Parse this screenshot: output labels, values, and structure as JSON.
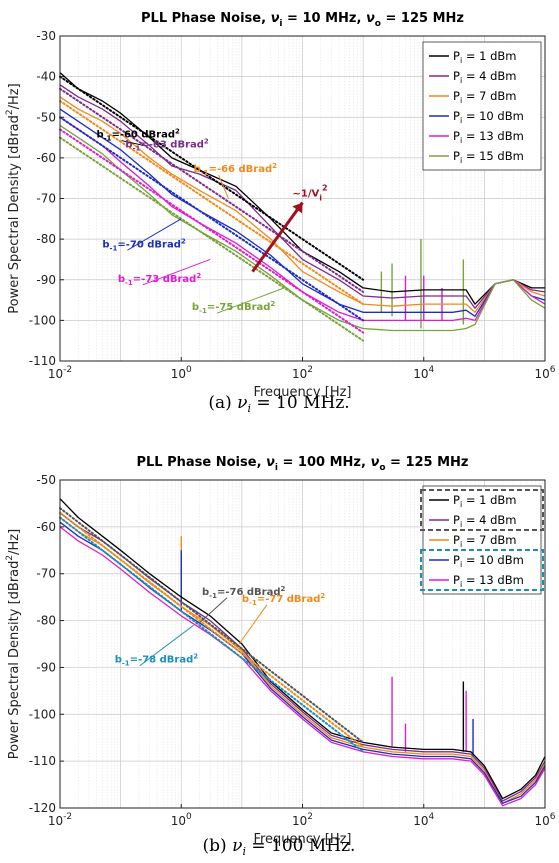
{
  "chart_data": [
    {
      "type": "line",
      "title_prefix": "PLL Phase Noise, ",
      "title_v1": "ν",
      "title_v1_sub": "i",
      "title_mid": " = 10 MHz, ",
      "title_v2": "ν",
      "title_v2_sub": "o",
      "title_end": " = 125 MHz",
      "xlabel": "Frequency [Hz]",
      "ylabel_pre": "Power Spectral Density [dBrad",
      "ylabel_sup": "2",
      "ylabel_post": "/Hz]",
      "x_scale": "log",
      "xlim": [
        0.01,
        1000000
      ],
      "ylim": [
        -110,
        -30
      ],
      "yticks": [
        -110,
        -100,
        -90,
        -80,
        -70,
        -60,
        -50,
        -40,
        -30
      ],
      "xtick_labels": [
        "10",
        "10",
        "10",
        "10",
        "10"
      ],
      "xtick_exponents": [
        "-2",
        "0",
        "2",
        "4",
        "6"
      ],
      "grid": true,
      "legend_position": "top-right",
      "series": [
        {
          "name": "P",
          "sub": "i",
          "rest": " = 1 dBm",
          "color": "#000000",
          "x": [
            0.01,
            0.02,
            0.05,
            0.1,
            0.3,
            0.7,
            2,
            8,
            30,
            100,
            400,
            1000,
            3000,
            10000,
            30000,
            50000,
            70000,
            150000,
            300000,
            600000,
            1000000
          ],
          "y": [
            -39,
            -43,
            -46,
            -49,
            -55,
            -60,
            -63,
            -67,
            -75,
            -83,
            -88,
            -92,
            -93,
            -92.5,
            -92.5,
            -92.5,
            -96,
            -91,
            -90,
            -92,
            -92
          ]
        },
        {
          "name": "P",
          "sub": "i",
          "rest": " = 4 dBm",
          "color": "#7b2d8e",
          "x": [
            0.01,
            0.02,
            0.05,
            0.1,
            0.3,
            0.7,
            2,
            8,
            30,
            100,
            400,
            1000,
            3000,
            10000,
            30000,
            50000,
            70000,
            150000,
            300000,
            600000,
            1000000
          ],
          "y": [
            -42,
            -45,
            -48,
            -51,
            -57,
            -62,
            -64,
            -68,
            -77,
            -85,
            -90,
            -94,
            -94.5,
            -94,
            -94,
            -94,
            -97,
            -91,
            -90,
            -92.5,
            -93
          ]
        },
        {
          "name": "P",
          "sub": "i",
          "rest": " = 7 dBm",
          "color": "#ef8a1a",
          "x": [
            0.01,
            0.02,
            0.05,
            0.1,
            0.3,
            0.7,
            2,
            8,
            30,
            100,
            400,
            1000,
            3000,
            10000,
            30000,
            50000,
            70000,
            150000,
            300000,
            600000,
            1000000
          ],
          "y": [
            -45,
            -48,
            -51,
            -54,
            -60,
            -64,
            -68,
            -73,
            -80,
            -88,
            -93,
            -96,
            -96.5,
            -96,
            -96,
            -96,
            -98,
            -91,
            -90,
            -93,
            -94
          ]
        },
        {
          "name": "P",
          "sub": "i",
          "rest": " = 10 dBm",
          "color": "#1c2dbf",
          "x": [
            0.01,
            0.02,
            0.05,
            0.1,
            0.3,
            0.7,
            2,
            8,
            30,
            100,
            400,
            1000,
            3000,
            10000,
            30000,
            50000,
            70000,
            150000,
            300000,
            600000,
            1000000
          ],
          "y": [
            -48,
            -51,
            -55,
            -58,
            -64,
            -69,
            -73,
            -78,
            -84,
            -91,
            -96,
            -98,
            -98,
            -98,
            -98,
            -97.5,
            -99,
            -91,
            -90,
            -94,
            -95
          ]
        },
        {
          "name": "P",
          "sub": "i",
          "rest": " = 13 dBm",
          "color": "#e01bd0",
          "x": [
            0.01,
            0.02,
            0.05,
            0.1,
            0.3,
            0.7,
            2,
            8,
            30,
            100,
            400,
            1000,
            3000,
            10000,
            30000,
            50000,
            70000,
            150000,
            300000,
            600000,
            1000000
          ],
          "y": [
            -50,
            -53,
            -57,
            -61,
            -67,
            -72,
            -76,
            -81,
            -87,
            -93,
            -98,
            -100,
            -100,
            -100,
            -100,
            -99.5,
            -100,
            -91,
            -90,
            -94,
            -96
          ]
        },
        {
          "name": "P",
          "sub": "i",
          "rest": " = 15 dBm",
          "color": "#76a33a",
          "x": [
            0.01,
            0.02,
            0.05,
            0.1,
            0.3,
            0.7,
            2,
            8,
            30,
            100,
            400,
            1000,
            3000,
            10000,
            30000,
            50000,
            70000,
            150000,
            300000,
            600000,
            1000000
          ],
          "y": [
            -52,
            -55,
            -59,
            -63,
            -69,
            -74,
            -78,
            -83,
            -89,
            -95,
            -100,
            -102,
            -102.5,
            -102.5,
            -102.5,
            -102,
            -101,
            -91,
            -90,
            -95,
            -97
          ]
        }
      ],
      "fit_lines": [
        {
          "color": "#000000",
          "b": -60,
          "x": [
            0.01,
            1000
          ],
          "y": [
            -40,
            -90
          ]
        },
        {
          "color": "#7b2d8e",
          "b": -63,
          "x": [
            0.01,
            1000
          ],
          "y": [
            -43,
            -93
          ]
        },
        {
          "color": "#ef8a1a",
          "b": -66,
          "x": [
            0.01,
            1000
          ],
          "y": [
            -46,
            -96
          ]
        },
        {
          "color": "#1c2dbf",
          "b": -70,
          "x": [
            0.01,
            1000
          ],
          "y": [
            -50,
            -100
          ]
        },
        {
          "color": "#e01bd0",
          "b": -73,
          "x": [
            0.01,
            1000
          ],
          "y": [
            -53,
            -103
          ]
        },
        {
          "color": "#76a33a",
          "b": -75,
          "x": [
            0.01,
            1000
          ],
          "y": [
            -55,
            -105
          ]
        }
      ],
      "spurs": [
        {
          "x": 2000,
          "top": -88,
          "base": -98,
          "color": "#76a33a"
        },
        {
          "x": 3000,
          "top": -86,
          "base": -99,
          "color": "#76a33a"
        },
        {
          "x": 5000,
          "top": -89,
          "base": -100,
          "color": "#e01bd0"
        },
        {
          "x": 9000,
          "top": -80,
          "base": -102,
          "color": "#76a33a"
        },
        {
          "x": 10000,
          "top": -89,
          "base": -100,
          "color": "#e01bd0"
        },
        {
          "x": 20000,
          "top": -92,
          "base": -100,
          "color": "#e01bd0"
        },
        {
          "x": 45000,
          "top": -85,
          "base": -101,
          "color": "#76a33a"
        }
      ],
      "annotations": [
        {
          "text": "b",
          "sub": "-1",
          "rest": "=-60 dBrad",
          "sup": "2",
          "color": "#000000",
          "tx": 0.04,
          "ty": -55,
          "ax": 0.25,
          "ay": -57
        },
        {
          "text": "b",
          "sub": "-1",
          "rest": "=-63 dBrad",
          "sup": "2",
          "color": "#7b2d8e",
          "tx": 0.12,
          "ty": -57.5,
          "ax": null,
          "ay": null
        },
        {
          "text": "b",
          "sub": "-1",
          "rest": "=-66 dBrad",
          "sup": "2",
          "color": "#ef8a1a",
          "tx": 1.6,
          "ty": -63.5,
          "ax": 6,
          "ay": -70
        },
        {
          "text": "b",
          "sub": "-1",
          "rest": "=-70 dBrad",
          "sup": "2",
          "color": "#1c2dbf",
          "tx": 0.05,
          "ty": -82,
          "ax": 1,
          "ay": -75
        },
        {
          "text": "b",
          "sub": "-1",
          "rest": "=-73 dBrad",
          "sup": "2",
          "color": "#e01bd0",
          "tx": 0.09,
          "ty": -90.5,
          "ax": 3,
          "ay": -85
        },
        {
          "text": "b",
          "sub": "-1",
          "rest": "=-75 dBrad",
          "sup": "2",
          "color": "#76a33a",
          "tx": 1.5,
          "ty": -97.5,
          "ax": 50,
          "ay": -92
        }
      ],
      "scale_arrow": {
        "text": "~1/V",
        "sub": "i",
        "sup": "2",
        "color": "#a0101e",
        "x1": 15,
        "y1": -88,
        "x2": 100,
        "y2": -71
      }
    },
    {
      "type": "line",
      "title_prefix": "PLL Phase Noise, ",
      "title_v1": "ν",
      "title_v1_sub": "i",
      "title_mid": " = 100 MHz, ",
      "title_v2": "ν",
      "title_v2_sub": "o",
      "title_end": " = 125 MHz",
      "xlabel": "Frequency [Hz]",
      "ylabel_pre": "Power Spectral Density [dBrad",
      "ylabel_sup": "2",
      "ylabel_post": "/Hz]",
      "x_scale": "log",
      "xlim": [
        0.01,
        1000000
      ],
      "ylim": [
        -120,
        -50
      ],
      "yticks": [
        -120,
        -110,
        -100,
        -90,
        -80,
        -70,
        -60,
        -50
      ],
      "xtick_labels": [
        "10",
        "10",
        "10",
        "10",
        "10"
      ],
      "xtick_exponents": [
        "-2",
        "0",
        "2",
        "4",
        "6"
      ],
      "grid": true,
      "legend_position": "top-right",
      "series": [
        {
          "name": "P",
          "sub": "i",
          "rest": " =  1 dBm",
          "color": "#000000",
          "x": [
            0.01,
            0.02,
            0.05,
            0.1,
            0.3,
            1,
            3,
            10,
            30,
            100,
            300,
            1000,
            3000,
            10000,
            30000,
            60000,
            100000,
            200000,
            400000,
            700000,
            1000000
          ],
          "y": [
            -54,
            -58,
            -62,
            -65,
            -70,
            -75,
            -79,
            -85,
            -93,
            -99,
            -104,
            -106,
            -107,
            -107.5,
            -107.5,
            -108,
            -111,
            -118,
            -116,
            -113,
            -109
          ]
        },
        {
          "name": "P",
          "sub": "i",
          "rest": " =  4  dBm",
          "color": "#7b2d8e",
          "x": [
            0.01,
            0.02,
            0.05,
            0.1,
            0.3,
            1,
            3,
            10,
            30,
            100,
            300,
            1000,
            3000,
            10000,
            30000,
            60000,
            100000,
            200000,
            400000,
            700000,
            1000000
          ],
          "y": [
            -57,
            -60,
            -63,
            -66,
            -71,
            -76,
            -80,
            -86,
            -93.5,
            -99.5,
            -104.5,
            -106.5,
            -107.5,
            -108,
            -108,
            -108.5,
            -111.5,
            -118.5,
            -116.5,
            -113.5,
            -110
          ]
        },
        {
          "name": "P",
          "sub": "i",
          "rest": " =  7  dBm",
          "color": "#ef8a1a",
          "x": [
            0.01,
            0.02,
            0.05,
            0.1,
            0.3,
            1,
            3,
            10,
            30,
            100,
            300,
            1000,
            3000,
            10000,
            30000,
            60000,
            100000,
            200000,
            400000,
            700000,
            1000000
          ],
          "y": [
            -58,
            -61,
            -64,
            -67,
            -72,
            -77,
            -81,
            -86.5,
            -94,
            -100,
            -105,
            -107,
            -108,
            -108.5,
            -108.5,
            -109,
            -112,
            -119,
            -117,
            -114,
            -110.5
          ]
        },
        {
          "name": "P",
          "sub": "i",
          "rest": " = 10 dBm",
          "color": "#1c2dbf",
          "x": [
            0.01,
            0.02,
            0.05,
            0.1,
            0.3,
            1,
            3,
            10,
            30,
            100,
            300,
            1000,
            3000,
            10000,
            30000,
            60000,
            100000,
            200000,
            400000,
            700000,
            1000000
          ],
          "y": [
            -59,
            -62,
            -65,
            -68,
            -73,
            -78,
            -82,
            -87,
            -94.5,
            -100.5,
            -105.5,
            -107.5,
            -108.5,
            -109,
            -109,
            -109.5,
            -112.5,
            -119,
            -117.5,
            -114.5,
            -111
          ]
        },
        {
          "name": "P",
          "sub": "i",
          "rest": " = 13 dBm",
          "color": "#e01bd0",
          "x": [
            0.01,
            0.02,
            0.05,
            0.1,
            0.3,
            1,
            3,
            10,
            30,
            100,
            300,
            1000,
            3000,
            10000,
            30000,
            60000,
            100000,
            200000,
            400000,
            700000,
            1000000
          ],
          "y": [
            -60,
            -63,
            -66,
            -69,
            -74,
            -79,
            -83,
            -88,
            -95,
            -101,
            -106,
            -108,
            -109,
            -109.5,
            -109.5,
            -110,
            -113,
            -119.5,
            -118,
            -115,
            -111.5
          ]
        }
      ],
      "fit_lines": [
        {
          "color": "#555555",
          "b": -76,
          "x": [
            0.01,
            1000
          ],
          "y": [
            -56,
            -106
          ]
        },
        {
          "color": "#ef8a1a",
          "b": -77,
          "x": [
            0.01,
            1000
          ],
          "y": [
            -57,
            -107
          ]
        },
        {
          "color": "#1a8fb8",
          "b": -78,
          "x": [
            0.01,
            1000
          ],
          "y": [
            -58,
            -108
          ]
        }
      ],
      "spurs": [
        {
          "x": 1,
          "top": -62,
          "base": -78,
          "color": "#ef8a1a"
        },
        {
          "x": 1,
          "top": -65,
          "base": -78,
          "color": "#1c2dbf"
        },
        {
          "x": 3000,
          "top": -92,
          "base": -107,
          "color": "#e01bd0"
        },
        {
          "x": 5000,
          "top": -102,
          "base": -108,
          "color": "#e01bd0"
        },
        {
          "x": 45000,
          "top": -93,
          "base": -108,
          "color": "#000000"
        },
        {
          "x": 50000,
          "top": -95,
          "base": -108,
          "color": "#e01bd0"
        },
        {
          "x": 65000,
          "top": -101,
          "base": -109,
          "color": "#1c2dbf"
        }
      ],
      "annotations": [
        {
          "text": "b",
          "sub": "-1",
          "rest": "=-76 dBrad",
          "sup": "2",
          "color": "#555555",
          "tx": 2.2,
          "ty": -74.5,
          "ax": 2,
          "ay": -80.5
        },
        {
          "text": "b",
          "sub": "-1",
          "rest": "=-77 dBrad",
          "sup": "2",
          "color": "#ef8a1a",
          "tx": 10,
          "ty": -76,
          "ax": 9,
          "ay": -85
        },
        {
          "text": "b",
          "sub": "-1",
          "rest": "=-78 dBrad",
          "sup": "2",
          "color": "#1a8fb8",
          "tx": 0.08,
          "ty": -89,
          "ax": 1.6,
          "ay": -81
        }
      ],
      "legend_groups": [
        {
          "color": "#555555",
          "from": 0,
          "to": 1
        },
        {
          "color": "#1a8fb8",
          "from": 3,
          "to": 4
        }
      ]
    }
  ],
  "captions": [
    {
      "pre": "(a) ",
      "var": "ν",
      "sub": "i",
      "post": " = 10 MHz."
    },
    {
      "pre": "(b) ",
      "var": "ν",
      "sub": "i",
      "post": " = 100 MHz."
    }
  ]
}
